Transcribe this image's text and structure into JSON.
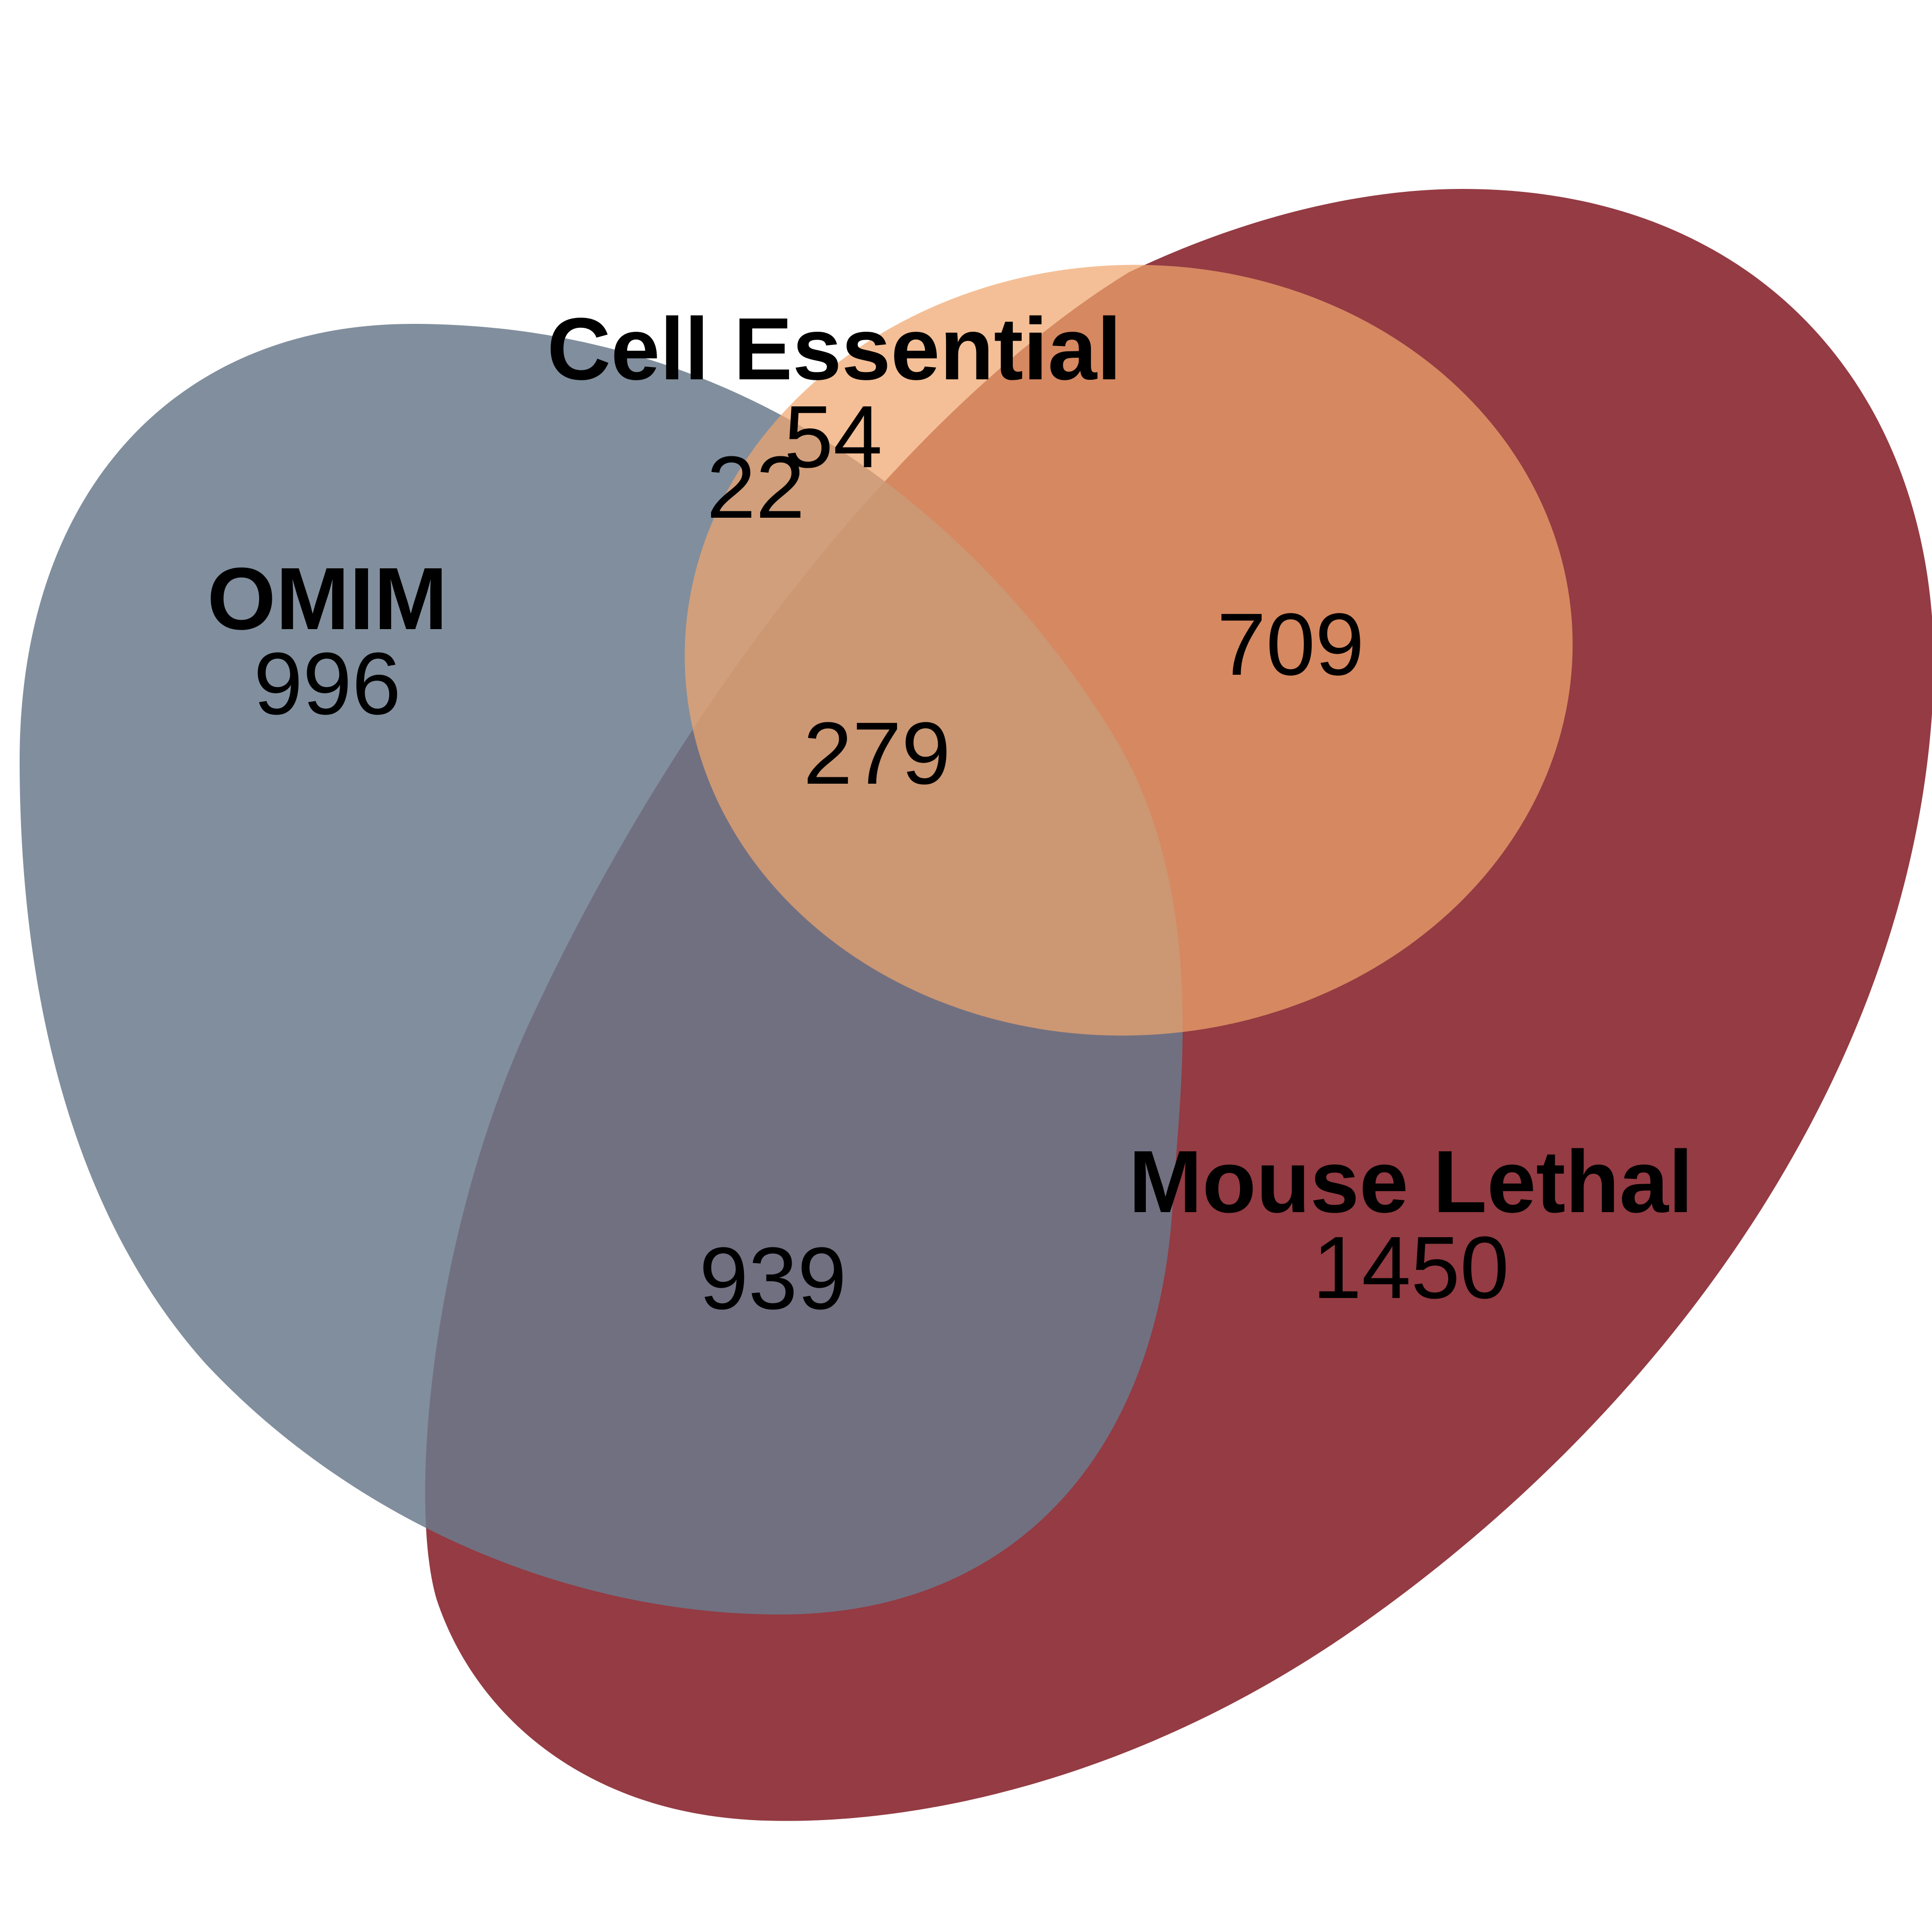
{
  "sets": [
    {
      "id": "omim",
      "label": "OMIM",
      "only_count": "996",
      "color": "#6b7a8c"
    },
    {
      "id": "mouse_lethal",
      "label": "Mouse Lethal",
      "only_count": "1450",
      "color": "#8b2a33"
    },
    {
      "id": "cell_essential",
      "label": "Cell Essential",
      "only_count": "54",
      "color": "#f0a66e"
    }
  ],
  "intersections": {
    "omim_cell_essential": "22",
    "mouse_lethal_cell_essential": "709",
    "omim_mouse_lethal": "939",
    "all_three": "279"
  }
}
